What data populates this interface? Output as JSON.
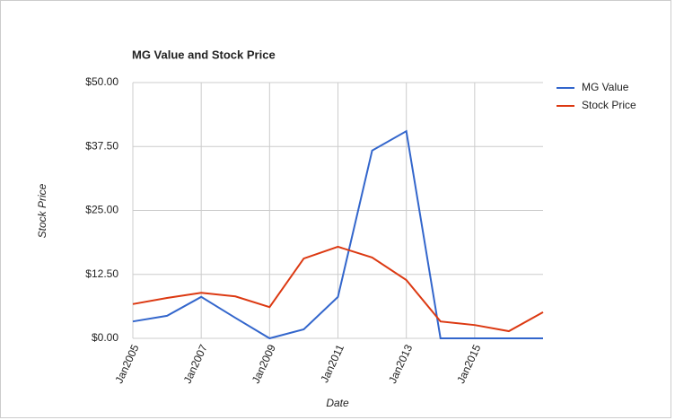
{
  "chart_data": {
    "type": "line",
    "title": "MG Value and Stock Price",
    "x_label": "Date",
    "y_label": "Stock Price",
    "x": [
      2005,
      2006,
      2007,
      2008,
      2009,
      2010,
      2011,
      2012,
      2013,
      2014,
      2015,
      2016,
      2017
    ],
    "series": [
      {
        "name": "MG Value",
        "color": "#3366cc",
        "values": [
          3.3,
          4.4,
          8.1,
          4.0,
          0,
          1.75,
          8.1,
          36.7,
          40.5,
          0,
          0,
          0,
          0
        ]
      },
      {
        "name": "Stock Price",
        "color": "#dc3912",
        "values": [
          6.7,
          7.9,
          8.9,
          8.2,
          6.1,
          15.6,
          17.9,
          15.8,
          11.4,
          3.3,
          2.6,
          1.4,
          5.1
        ]
      }
    ],
    "xlim": [
      2005,
      2017
    ],
    "xticks": [
      {
        "value": 2005,
        "label": "Jan2005"
      },
      {
        "value": 2007,
        "label": "Jan2007"
      },
      {
        "value": 2009,
        "label": "Jan2009"
      },
      {
        "value": 2011,
        "label": "Jan2011"
      },
      {
        "value": 2013,
        "label": "Jan2013"
      },
      {
        "value": 2015,
        "label": "Jan2015"
      }
    ],
    "ylim": [
      0,
      50
    ],
    "yticks": [
      {
        "value": 0,
        "label": "$0.00"
      },
      {
        "value": 12.5,
        "label": "$12.50"
      },
      {
        "value": 25,
        "label": "$25.00"
      },
      {
        "value": 37.5,
        "label": "$37.50"
      },
      {
        "value": 50,
        "label": "$50.00"
      }
    ],
    "grid": true,
    "legend": "right"
  }
}
